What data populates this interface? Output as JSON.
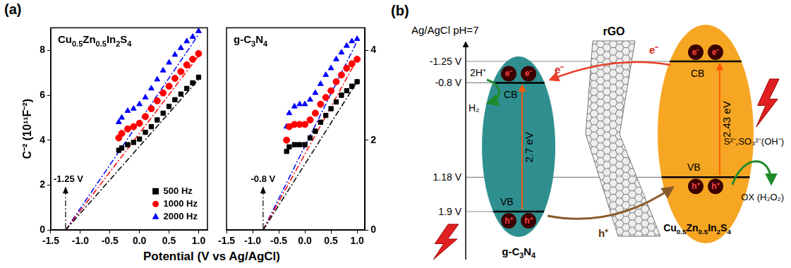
{
  "figure": {
    "label": "(a)",
    "xlabel": "Potential (V vs Ag/AgCl)"
  },
  "chart_data": [
    {
      "type": "scatter",
      "title": "Cu0.5Zn0.5In2S4",
      "ylabel": "C⁻² (10¹¹F⁻²)",
      "xlim": [
        -1.5,
        1.15
      ],
      "xticks": [
        -1.5,
        {
          "value": -1,
          "label": "-1.0"
        },
        -0.5,
        {
          "value": 0,
          "label": "0.0"
        },
        0.5,
        {
          "value": 1,
          "label": "1.0"
        }
      ],
      "ylim": [
        0,
        9
      ],
      "yticks": [
        0,
        2,
        4,
        6,
        8
      ],
      "grid": false,
      "legend": "lower right",
      "x": [
        -0.35,
        -0.3,
        -0.2,
        -0.1,
        0,
        0.1,
        0.2,
        0.3,
        0.4,
        0.5,
        0.6,
        0.7,
        0.8,
        0.9,
        1
      ],
      "series": [
        {
          "name": "500 Hz",
          "color": "#000000",
          "marker": "square",
          "values": [
            3.55,
            3.65,
            3.8,
            3.9,
            4.05,
            4.35,
            4.6,
            4.9,
            5.2,
            5.5,
            5.8,
            6.05,
            6.3,
            6.55,
            6.8
          ]
        },
        {
          "name": "1000 Hz",
          "color": "#ff0000",
          "marker": "circle",
          "values": [
            4.1,
            4.3,
            4.5,
            4.6,
            4.75,
            5.05,
            5.4,
            5.75,
            6.1,
            6.4,
            6.75,
            7.05,
            7.35,
            7.6,
            7.85
          ]
        },
        {
          "name": "2000 Hz",
          "color": "#0000ff",
          "marker": "triangle",
          "values": [
            4.8,
            5.0,
            5.3,
            5.4,
            5.6,
            5.9,
            6.3,
            6.7,
            7.1,
            7.45,
            7.8,
            8.1,
            8.4,
            8.6,
            8.85
          ]
        }
      ],
      "fits": [
        {
          "color": "#000000",
          "line_style": "dashdot",
          "x": [
            -1.25,
            1
          ],
          "values": [
            0,
            6.7
          ]
        },
        {
          "color": "#ff0000",
          "line_style": "dashdot",
          "x": [
            -1.25,
            1
          ],
          "values": [
            0,
            7.75
          ]
        },
        {
          "color": "#0000ff",
          "line_style": "dashdot",
          "x": [
            -1.25,
            1
          ],
          "values": [
            0,
            8.7
          ]
        }
      ],
      "annotations": [
        {
          "text": "-1.25 V",
          "x": -1.25
        }
      ]
    },
    {
      "type": "scatter",
      "title": "g-C3N4",
      "xlim": [
        -1.5,
        1.15
      ],
      "xticks": [
        -1.5,
        {
          "value": -1,
          "label": "-1.0"
        },
        -0.5,
        {
          "value": 0,
          "label": "0.0"
        },
        0.5,
        {
          "value": 1,
          "label": "1.0"
        }
      ],
      "y2lim": [
        0,
        4.5
      ],
      "y2ticks": [
        0,
        2,
        4
      ],
      "grid": false,
      "x": [
        -0.35,
        -0.3,
        -0.2,
        -0.1,
        0,
        0.1,
        0.2,
        0.3,
        0.4,
        0.5,
        0.6,
        0.7,
        0.8,
        0.9,
        1
      ],
      "series": [
        {
          "color": "#000000",
          "marker": "square",
          "axis": "y2",
          "values": [
            1.75,
            1.85,
            1.9,
            1.9,
            1.9,
            2.05,
            2.2,
            2.4,
            2.55,
            2.7,
            2.85,
            3.0,
            3.1,
            3.2,
            3.3
          ]
        },
        {
          "color": "#ff0000",
          "marker": "circle",
          "axis": "y2",
          "values": [
            2.0,
            2.3,
            2.35,
            2.35,
            2.35,
            2.45,
            2.6,
            2.8,
            2.95,
            3.1,
            3.3,
            3.45,
            3.6,
            3.7,
            3.8
          ]
        },
        {
          "color": "#0000ff",
          "marker": "triangle",
          "axis": "y2",
          "values": [
            2.3,
            2.6,
            2.75,
            2.8,
            2.8,
            2.9,
            3.05,
            3.25,
            3.45,
            3.6,
            3.8,
            3.95,
            4.1,
            4.2,
            4.25
          ]
        }
      ],
      "fits": [
        {
          "color": "#000000",
          "line_style": "dashdot",
          "axis": "y2",
          "x": [
            -0.8,
            1
          ],
          "values": [
            0,
            3.3
          ]
        },
        {
          "color": "#ff0000",
          "line_style": "dashdot",
          "axis": "y2",
          "x": [
            -0.8,
            1
          ],
          "values": [
            0,
            3.8
          ]
        },
        {
          "color": "#0000ff",
          "line_style": "dashdot",
          "axis": "y2",
          "x": [
            -0.8,
            1
          ],
          "values": [
            0,
            4.2
          ]
        }
      ],
      "annotations": [
        {
          "text": "-0.8 V",
          "x": -0.8
        }
      ]
    }
  ],
  "diagram": {
    "label": "(b)",
    "axis_title": "Ag/AgCl pH=7",
    "levels": [
      {
        "value": -1.25,
        "label": "-1.25 V"
      },
      {
        "value": -0.8,
        "label": "-0.8 V"
      },
      {
        "value": 1.18,
        "label": "1.18 V"
      },
      {
        "value": 1.9,
        "label": "1.9 V"
      }
    ],
    "materials": [
      {
        "name": "g-C3N4",
        "color": "#2f8f8f",
        "cb": -0.8,
        "vb": 1.9,
        "band_gap": "2.7 eV",
        "cb_label": "CB",
        "vb_label": "VB",
        "carrier_cb": "e⁻",
        "carrier_vb": "h⁺"
      },
      {
        "name": "Cu0.5Zn0.5In2S4",
        "color": "#f6a623",
        "cb": -1.25,
        "vb": 1.18,
        "band_gap": "2.43 eV",
        "cb_label": "CB",
        "vb_label": "VB",
        "carrier_cb": "e⁻",
        "carrier_vb": "h⁺"
      }
    ],
    "mediator": "rGO",
    "electron_transfer": "e⁻",
    "hole_transfer": "h⁺",
    "reduction": {
      "reactant": "2H⁺",
      "product": "H₂"
    },
    "oxidation": {
      "reactant": "S²⁻,SO₃²⁻(OH⁻)",
      "product": "OX (H₂O₂)"
    }
  }
}
